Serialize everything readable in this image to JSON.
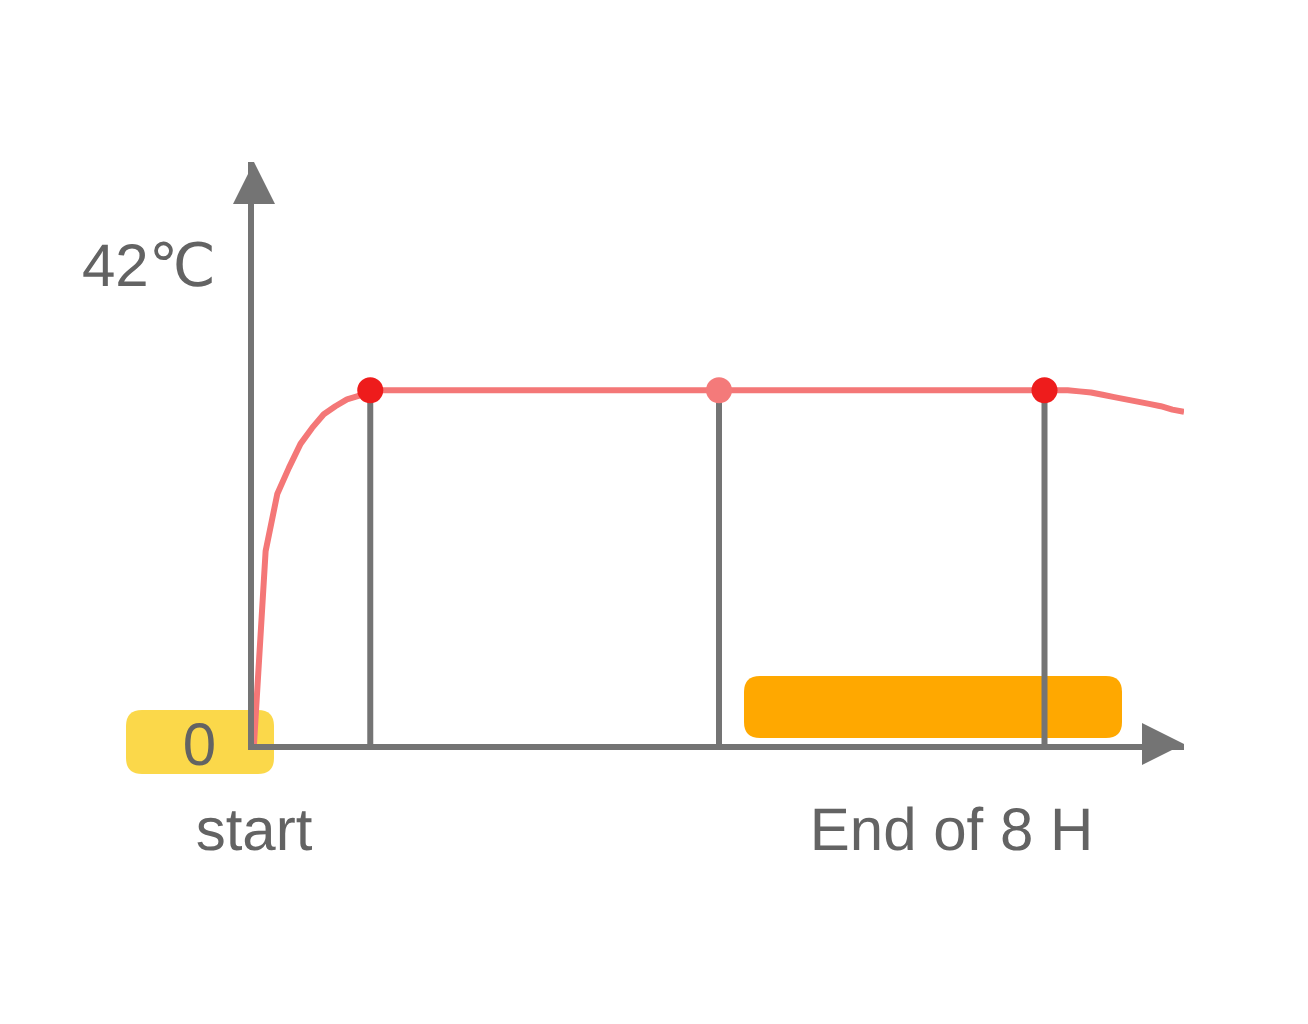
{
  "chart_data": {
    "type": "line",
    "categories": [
      "start",
      null,
      null,
      null,
      null,
      null,
      null,
      null,
      null,
      null,
      null,
      null,
      null,
      null,
      null,
      null,
      null,
      null,
      null,
      null,
      null,
      null,
      null,
      null,
      null,
      null,
      null,
      null,
      null,
      null,
      null,
      null,
      null,
      null,
      null,
      null,
      null,
      null,
      null,
      null,
      null,
      null,
      null,
      null,
      null,
      null,
      null,
      null,
      null,
      null,
      null,
      null,
      null,
      null,
      null,
      null,
      null,
      null,
      null,
      null,
      "End of 8 H",
      null,
      null,
      null,
      null,
      null,
      null,
      null,
      null,
      null,
      null,
      null,
      null,
      null,
      null,
      null,
      null,
      null,
      null,
      null,
      null
    ],
    "series": [
      {
        "color": "#f47777",
        "marker": "none",
        "values": [
          0,
          16.9,
          21.9,
          24.2,
          26.3,
          27.7,
          28.9,
          29.6,
          30.2,
          30.5,
          31,
          31,
          31,
          31,
          31,
          31,
          31,
          31,
          31,
          31,
          31,
          31,
          31,
          31,
          31,
          31,
          31,
          31,
          31,
          31,
          31,
          31,
          31,
          31,
          31,
          31,
          31,
          31,
          31,
          31,
          31,
          31,
          31,
          31,
          31,
          31,
          31,
          31,
          31,
          31,
          31,
          31,
          31,
          31,
          31,
          31,
          31,
          31,
          31,
          31,
          31,
          31,
          31,
          31,
          31,
          31,
          31,
          31,
          31,
          31,
          31,
          30.9,
          30.8,
          30.6,
          30.4,
          30.2,
          30.0,
          29.8,
          29.6,
          29.3,
          29.1
        ]
      },
      {
        "type": "lollipop",
        "marker": "circle",
        "color": "#ee1c1c",
        "values": [
          null,
          null,
          null,
          null,
          null,
          null,
          null,
          null,
          null,
          null,
          31,
          null,
          null,
          null,
          null,
          null,
          null,
          null,
          null,
          null,
          null,
          null,
          null,
          null,
          null,
          null,
          null,
          null,
          null,
          null,
          null,
          null,
          null,
          null,
          null,
          null,
          null,
          null,
          null,
          null,
          null,
          null,
          null,
          null,
          null,
          null,
          null,
          null,
          null,
          null,
          null,
          null,
          null,
          null,
          null,
          null,
          null,
          null,
          null,
          null,
          null,
          null,
          null,
          null,
          null,
          null,
          null,
          null,
          31,
          null,
          null,
          null,
          null,
          null,
          null,
          null,
          null,
          null,
          null,
          null,
          null
        ]
      },
      {
        "type": "lollipop",
        "marker": "circle",
        "color": "#f47a7a",
        "values": [
          null,
          null,
          null,
          null,
          null,
          null,
          null,
          null,
          null,
          null,
          null,
          null,
          null,
          null,
          null,
          null,
          null,
          null,
          null,
          null,
          null,
          null,
          null,
          null,
          null,
          null,
          null,
          null,
          null,
          null,
          null,
          null,
          null,
          null,
          null,
          null,
          null,
          null,
          null,
          null,
          31,
          null,
          null,
          null,
          null,
          null,
          null,
          null,
          null,
          null,
          null,
          null,
          null,
          null,
          null,
          null,
          null,
          null,
          null,
          null,
          null,
          null,
          null,
          null,
          null,
          null,
          null,
          null,
          null,
          null,
          null,
          null,
          null,
          null,
          null,
          null,
          null,
          null,
          null,
          null,
          null
        ]
      }
    ],
    "ylim": [
      0,
      51
    ],
    "yticks": [
      {
        "value": 0,
        "label": "0"
      },
      {
        "value": 42,
        "label": "42℃"
      }
    ],
    "grid": false
  }
}
